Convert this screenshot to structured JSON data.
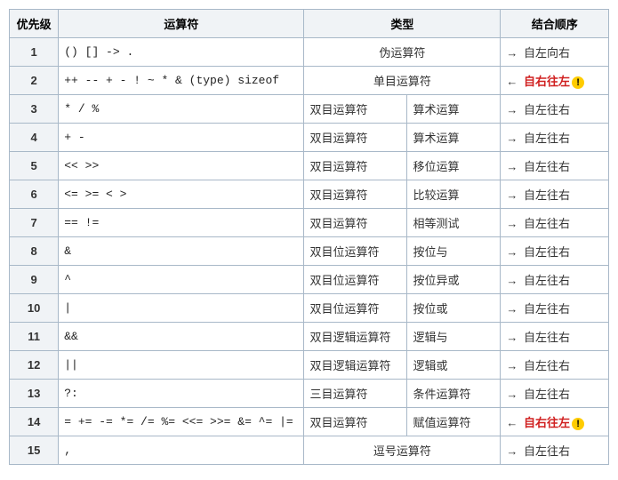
{
  "headers": {
    "priority": "优先级",
    "operator": "运算符",
    "type": "类型",
    "assoc": "结合顺序"
  },
  "arrows": {
    "ltr": "→",
    "rtl": "←"
  },
  "warnGlyph": "!",
  "rows": [
    {
      "n": "1",
      "op": "() [] -> .",
      "type_span": true,
      "type1": "伪运算符",
      "type2": "",
      "dir": "ltr",
      "assoc": "自左向右",
      "hl": false,
      "warn": false
    },
    {
      "n": "2",
      "op": "++ -- + - ! ~ * & (type) sizeof",
      "type_span": true,
      "type1": "单目运算符",
      "type2": "",
      "dir": "rtl",
      "assoc": "自右往左",
      "hl": true,
      "warn": true
    },
    {
      "n": "3",
      "op": "* / %",
      "type_span": false,
      "type1": "双目运算符",
      "type2": "算术运算",
      "dir": "ltr",
      "assoc": "自左往右",
      "hl": false,
      "warn": false
    },
    {
      "n": "4",
      "op": "+ -",
      "type_span": false,
      "type1": "双目运算符",
      "type2": "算术运算",
      "dir": "ltr",
      "assoc": "自左往右",
      "hl": false,
      "warn": false
    },
    {
      "n": "5",
      "op": "<< >>",
      "type_span": false,
      "type1": "双目运算符",
      "type2": "移位运算",
      "dir": "ltr",
      "assoc": "自左往右",
      "hl": false,
      "warn": false
    },
    {
      "n": "6",
      "op": "<= >= < >",
      "type_span": false,
      "type1": "双目运算符",
      "type2": "比较运算",
      "dir": "ltr",
      "assoc": "自左往右",
      "hl": false,
      "warn": false
    },
    {
      "n": "7",
      "op": "== !=",
      "type_span": false,
      "type1": "双目运算符",
      "type2": "相等测试",
      "dir": "ltr",
      "assoc": "自左往右",
      "hl": false,
      "warn": false
    },
    {
      "n": "8",
      "op": "&",
      "type_span": false,
      "type1": "双目位运算符",
      "type2": "按位与",
      "dir": "ltr",
      "assoc": "自左往右",
      "hl": false,
      "warn": false
    },
    {
      "n": "9",
      "op": "^",
      "type_span": false,
      "type1": "双目位运算符",
      "type2": "按位异或",
      "dir": "ltr",
      "assoc": "自左往右",
      "hl": false,
      "warn": false
    },
    {
      "n": "10",
      "op": "|",
      "type_span": false,
      "type1": "双目位运算符",
      "type2": "按位或",
      "dir": "ltr",
      "assoc": "自左往右",
      "hl": false,
      "warn": false
    },
    {
      "n": "11",
      "op": "&&",
      "type_span": false,
      "type1": "双目逻辑运算符",
      "type2": "逻辑与",
      "dir": "ltr",
      "assoc": "自左往右",
      "hl": false,
      "warn": false
    },
    {
      "n": "12",
      "op": "||",
      "type_span": false,
      "type1": "双目逻辑运算符",
      "type2": "逻辑或",
      "dir": "ltr",
      "assoc": "自左往右",
      "hl": false,
      "warn": false
    },
    {
      "n": "13",
      "op": "?:",
      "type_span": false,
      "type1": "三目运算符",
      "type2": "条件运算符",
      "dir": "ltr",
      "assoc": "自左往右",
      "hl": false,
      "warn": false
    },
    {
      "n": "14",
      "op": "= += -= *= /= %= <<= >>= &= ^= |=",
      "type_span": false,
      "type1": "双目运算符",
      "type2": "赋值运算符",
      "dir": "rtl",
      "assoc": "自右往左",
      "hl": true,
      "warn": true
    },
    {
      "n": "15",
      "op": ",",
      "type_span": true,
      "type1": "逗号运算符",
      "type2": "",
      "dir": "ltr",
      "assoc": "自左往右",
      "hl": false,
      "warn": false
    }
  ]
}
